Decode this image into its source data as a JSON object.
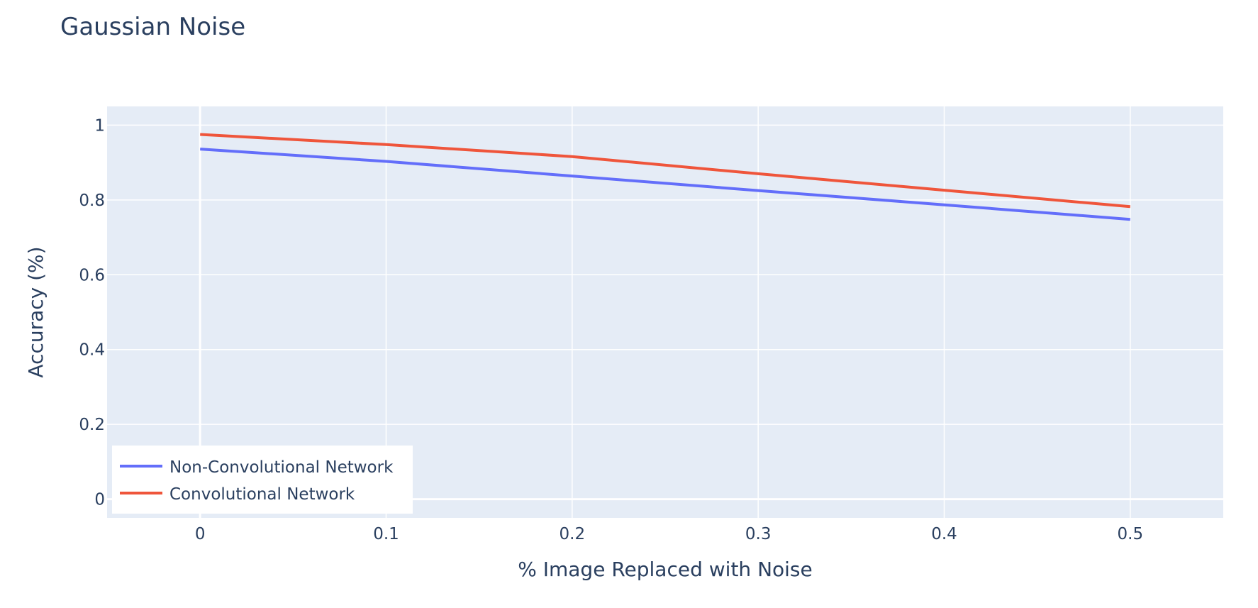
{
  "chart_data": {
    "type": "line",
    "title": "Gaussian Noise",
    "xlabel": "% Image Replaced with Noise",
    "ylabel": "Accuracy (%)",
    "x": [
      0,
      0.1,
      0.2,
      0.3,
      0.4,
      0.5
    ],
    "xlim": [
      -0.05,
      0.55
    ],
    "ylim": [
      -0.05,
      1.05
    ],
    "xticks": [
      0,
      0.1,
      0.2,
      0.3,
      0.4,
      0.5
    ],
    "xtick_labels": [
      "0",
      "0.1",
      "0.2",
      "0.3",
      "0.4",
      "0.5"
    ],
    "yticks": [
      0,
      0.2,
      0.4,
      0.6,
      0.8,
      1
    ],
    "ytick_labels": [
      "0",
      "0.2",
      "0.4",
      "0.6",
      "0.8",
      "1"
    ],
    "grid": true,
    "legend_position": "bottom-left",
    "plot_background": "#e5ecf6",
    "series": [
      {
        "name": "Non-Convolutional Network",
        "color": "#636efa",
        "values": [
          0.936,
          0.903,
          0.864,
          0.825,
          0.787,
          0.748
        ]
      },
      {
        "name": "Convolutional Network",
        "color": "#ef553b",
        "values": [
          0.975,
          0.948,
          0.916,
          0.87,
          0.826,
          0.782
        ]
      }
    ]
  }
}
